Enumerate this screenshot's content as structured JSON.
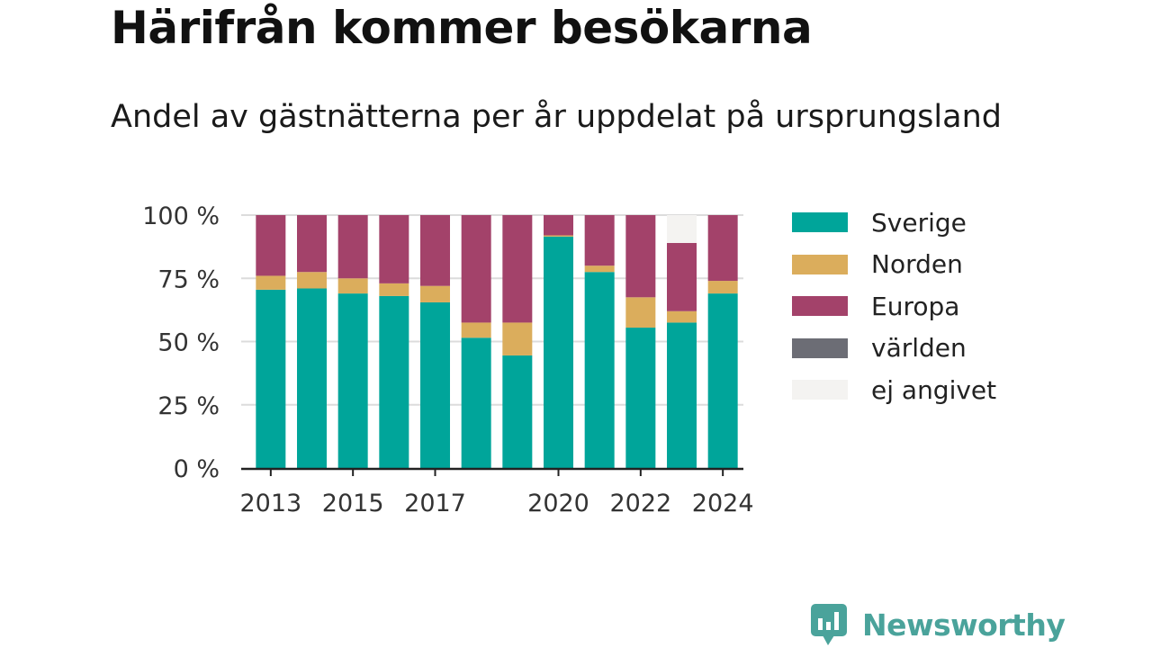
{
  "title": "Härifrån kommer besökarna",
  "subtitle": "Andel av gästnätterna per år uppdelat på ursprungsland",
  "brand": {
    "name": "Newsworthy",
    "color": "#4aa39b"
  },
  "chart_data": {
    "type": "bar",
    "stacked": true,
    "categories": [
      "2013",
      "2014",
      "2015",
      "2016",
      "2017",
      "2018",
      "2019",
      "2020",
      "2021",
      "2022",
      "2023",
      "2024"
    ],
    "x_tick_labels": [
      "2013",
      "2015",
      "2017",
      "2020",
      "2022",
      "2024"
    ],
    "ylim": [
      0,
      100
    ],
    "y_ticks": [
      0,
      25,
      50,
      75,
      100
    ],
    "y_tick_labels": [
      "0 %",
      "25 %",
      "50 %",
      "75 %",
      "100 %"
    ],
    "grid": true,
    "legend_position": "right",
    "series": [
      {
        "name": "Sverige",
        "color": "#00a59a",
        "values": [
          70.5,
          71,
          69,
          68,
          65.5,
          51.5,
          44.5,
          91.5,
          77.5,
          55.5,
          57.5,
          69
        ]
      },
      {
        "name": "Norden",
        "color": "#dbad5c",
        "values": [
          5.5,
          6.5,
          6,
          5,
          6.5,
          6,
          13,
          0.5,
          2.5,
          12,
          4.5,
          5
        ]
      },
      {
        "name": "Europa",
        "color": "#a3426a",
        "values": [
          24,
          22.5,
          25,
          27,
          28,
          42.5,
          42.5,
          8,
          20,
          32.5,
          27,
          26
        ]
      },
      {
        "name": "världen",
        "color": "#6c6d75",
        "values": [
          0,
          0,
          0,
          0,
          0,
          0,
          0,
          0,
          0,
          0,
          0,
          0
        ]
      },
      {
        "name": "ej angivet",
        "color": "#f4f3f1",
        "values": [
          0,
          0,
          0,
          0,
          0,
          0,
          0,
          0,
          0,
          0,
          11,
          0
        ]
      }
    ]
  }
}
